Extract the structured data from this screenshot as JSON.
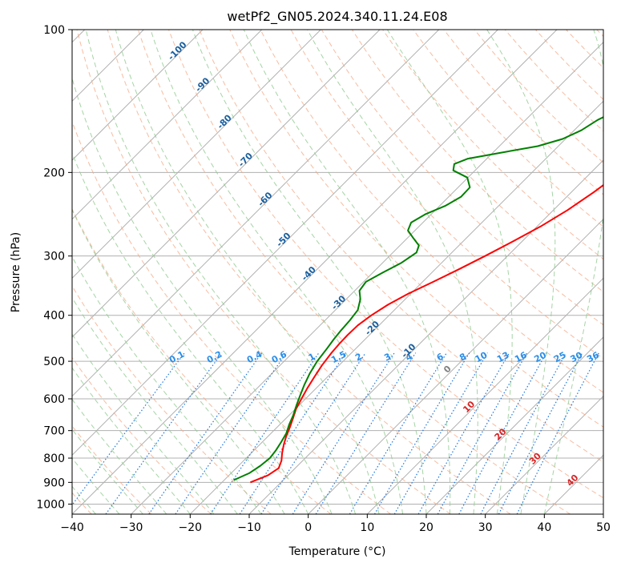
{
  "chart_data": {
    "type": "line",
    "title": "wetPf2_GN05.2024.340.11.24.E08",
    "xlabel": "Temperature (°C)",
    "ylabel": "Pressure (hPa)",
    "xlim": [
      -40,
      50
    ],
    "ylim": [
      1050,
      100
    ],
    "y_scale": "log",
    "grid": true,
    "x_ticks": [
      "−40",
      "−30",
      "−20",
      "−10",
      "0",
      "10",
      "20",
      "30",
      "40",
      "50"
    ],
    "x_tick_values": [
      -40,
      -30,
      -20,
      -10,
      0,
      10,
      20,
      30,
      40,
      50
    ],
    "y_ticks": [
      "100",
      "200",
      "300",
      "400",
      "500",
      "600",
      "700",
      "800",
      "900",
      "1000"
    ],
    "y_tick_values": [
      100,
      200,
      300,
      400,
      500,
      600,
      700,
      800,
      900,
      1000
    ],
    "colors": {
      "temperature": "#ff0000",
      "dewpoint": "#008000",
      "dry_adiabat": "#f4a582",
      "moist_adiabat": "#8fc98f",
      "mixing_ratio": "#1f77e0",
      "isotherm": "#808080",
      "dry_adiabat_label": "#1a5f9e",
      "mixing_ratio_label": "#2a8ee8",
      "isotherm_label": "#d62728"
    },
    "series": [
      {
        "key": "temperature",
        "pressure": [
          900,
          870,
          840,
          810,
          780,
          750,
          720,
          690,
          660,
          630,
          600,
          570,
          540,
          510,
          480,
          460,
          440,
          420,
          400,
          380,
          360,
          340,
          320,
          300,
          280,
          260,
          240,
          220,
          200,
          185,
          170,
          160,
          150,
          140,
          130,
          120,
          110,
          100
        ],
        "temp": [
          -15.2,
          -13.4,
          -12.8,
          -13.6,
          -14.8,
          -15.9,
          -16.9,
          -17.8,
          -18.8,
          -19.9,
          -20.7,
          -21.5,
          -22.2,
          -22.9,
          -23.4,
          -23.6,
          -23.7,
          -23.6,
          -23.0,
          -22.0,
          -20.4,
          -18.2,
          -16.0,
          -13.8,
          -11.6,
          -9.4,
          -7.6,
          -6.2,
          -5.0,
          -4.8,
          -4.6,
          -4.2,
          -3.6,
          -2.8,
          -1.6,
          -0.2,
          1.4,
          3.6
        ]
      },
      {
        "key": "dewpoint",
        "pressure": [
          890,
          860,
          830,
          800,
          770,
          740,
          710,
          680,
          650,
          620,
          590,
          560,
          530,
          500,
          470,
          450,
          430,
          410,
          390,
          370,
          355,
          340,
          325,
          310,
          295,
          285,
          275,
          265,
          255,
          245,
          235,
          225,
          215,
          205,
          198,
          192,
          187,
          182,
          176,
          170,
          163,
          155,
          147,
          139,
          131,
          123,
          115,
          107,
          100
        ],
        "dwpt": [
          -18.4,
          -16.9,
          -16.3,
          -16.0,
          -16.3,
          -16.8,
          -17.4,
          -18.4,
          -19.3,
          -20.4,
          -21.5,
          -22.6,
          -23.6,
          -24.4,
          -24.9,
          -25.3,
          -25.6,
          -25.8,
          -26.2,
          -27.6,
          -29.2,
          -29.6,
          -28.3,
          -26.8,
          -26.0,
          -26.8,
          -29.0,
          -31.2,
          -32.0,
          -31.0,
          -29.0,
          -27.9,
          -28.0,
          -30.1,
          -33.7,
          -34.6,
          -33.2,
          -28.9,
          -23.5,
          -20.5,
          -18.8,
          -17.8,
          -15.9,
          -14.1,
          -12.4,
          -11.0,
          -10.0,
          -9.0,
          -8.1
        ]
      }
    ],
    "dry_adiabat_labels": [
      "-100",
      "-90",
      "-80",
      "-70",
      "-60",
      "-50",
      "-40",
      "-30",
      "-20",
      "-10"
    ],
    "dry_adiabat_label_values": [
      -100,
      -90,
      -80,
      -70,
      -60,
      -50,
      -40,
      -30,
      -20,
      -10
    ],
    "mixing_ratio_labels": [
      "0.1",
      "0.2",
      "0.4",
      "0.6",
      "1",
      "1.5",
      "2",
      "3",
      "4",
      "6",
      "8",
      "10",
      "13",
      "16",
      "20",
      "25",
      "30",
      "36"
    ],
    "mixing_ratio_values": [
      0.1,
      0.2,
      0.4,
      0.6,
      1,
      1.5,
      2,
      3,
      4,
      6,
      8,
      10,
      13,
      16,
      20,
      25,
      30,
      36
    ],
    "isotherm_labels": [
      "0",
      "10",
      "20",
      "30",
      "40"
    ],
    "isotherm_label_values": [
      0,
      10,
      20,
      30,
      40
    ]
  }
}
